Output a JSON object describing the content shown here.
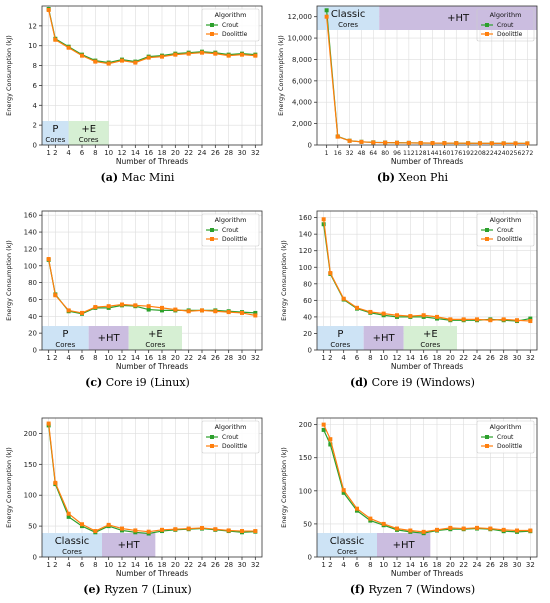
{
  "chart_data": [
    {
      "type": "line",
      "caption_label": "(a)",
      "caption_text": "Mac Mini",
      "ylabel": "Energy Consumption (kJ)",
      "xlabel": "Number of Threads",
      "xticks": [
        1,
        2,
        4,
        6,
        8,
        10,
        12,
        14,
        16,
        18,
        20,
        22,
        24,
        26,
        28,
        30,
        32
      ],
      "xlim": [
        0,
        33
      ],
      "ylim": [
        0,
        14
      ],
      "yticks": [
        0,
        2,
        4,
        6,
        8,
        10,
        12
      ],
      "ytick_labels": [
        "0",
        "2",
        "4",
        "6",
        "8",
        "10",
        "12"
      ],
      "legend_title": "Algorithm",
      "series": [
        {
          "name": "Crout",
          "color": "#2ca02c",
          "x": [
            1,
            2,
            4,
            6,
            8,
            10,
            12,
            14,
            16,
            18,
            20,
            22,
            24,
            26,
            28,
            30,
            32
          ],
          "values": [
            13.7,
            10.7,
            9.9,
            9.1,
            8.5,
            8.3,
            8.6,
            8.4,
            8.9,
            9.0,
            9.2,
            9.3,
            9.4,
            9.3,
            9.1,
            9.2,
            9.1
          ]
        },
        {
          "name": "Doolittle",
          "color": "#ff7f0e",
          "x": [
            1,
            2,
            4,
            6,
            8,
            10,
            12,
            14,
            16,
            18,
            20,
            22,
            24,
            26,
            28,
            30,
            32
          ],
          "values": [
            13.6,
            10.6,
            9.8,
            9.0,
            8.4,
            8.2,
            8.5,
            8.3,
            8.8,
            8.9,
            9.1,
            9.2,
            9.3,
            9.2,
            9.0,
            9.1,
            9.0
          ]
        }
      ],
      "bands": [
        {
          "top": "P",
          "bottom": "Cores",
          "x0": 0,
          "x1": 4,
          "color": "#cde3f5"
        },
        {
          "top": "+E",
          "bottom": "Cores",
          "x0": 4,
          "x1": 10,
          "color": "#d6efd3"
        }
      ]
    },
    {
      "type": "line",
      "caption_label": "(b)",
      "caption_text": "Xeon Phi",
      "ylabel": "Energy Consumption (kJ)",
      "xlabel": "Number of Threads",
      "xticks": [
        1,
        16,
        32,
        48,
        64,
        80,
        96,
        112,
        128,
        144,
        160,
        176,
        192,
        208,
        224,
        240,
        256,
        272
      ],
      "xtick_labels": [
        "1",
        "16",
        "32",
        "48",
        "64",
        "80",
        "96",
        "112",
        "128",
        "144",
        "160",
        "176",
        "192",
        "208",
        "224",
        "240",
        "256",
        "272"
      ],
      "xlim": [
        -12,
        285
      ],
      "ylim": [
        0,
        13000
      ],
      "yticks": [
        0,
        2000,
        4000,
        6000,
        8000,
        10000,
        12000
      ],
      "ytick_labels": [
        "0",
        "2,000",
        "4,000",
        "6,000",
        "8,000",
        "10,000",
        "12,000"
      ],
      "legend_title": "Algorithm",
      "series": [
        {
          "name": "Crout",
          "color": "#2ca02c",
          "x": [
            1,
            16,
            32,
            48,
            64,
            80,
            96,
            112,
            128,
            144,
            160,
            176,
            192,
            208,
            224,
            240,
            256,
            272
          ],
          "values": [
            12600,
            800,
            400,
            300,
            250,
            230,
            210,
            200,
            190,
            180,
            175,
            170,
            165,
            160,
            158,
            155,
            152,
            150
          ]
        },
        {
          "name": "Doolittle",
          "color": "#ff7f0e",
          "x": [
            1,
            16,
            32,
            48,
            64,
            80,
            96,
            112,
            128,
            144,
            160,
            176,
            192,
            208,
            224,
            240,
            256,
            272
          ],
          "values": [
            12000,
            780,
            390,
            290,
            240,
            220,
            205,
            195,
            185,
            178,
            172,
            168,
            162,
            158,
            155,
            152,
            150,
            148
          ]
        }
      ],
      "bands": [
        {
          "top": "Classic",
          "bottom": "Cores",
          "x0": -12,
          "x1": 72,
          "color": "#cde3f5"
        },
        {
          "top": "+HT",
          "bottom": "",
          "x0": 72,
          "x1": 285,
          "color": "#cbbde0"
        }
      ],
      "legend_over_band": true
    },
    {
      "type": "line",
      "caption_label": "(c)",
      "caption_text": "Core i9 (Linux)",
      "ylabel": "Energy Consumption (kJ)",
      "xlabel": "Number of Threads",
      "xticks": [
        1,
        2,
        4,
        6,
        8,
        10,
        12,
        14,
        16,
        18,
        20,
        22,
        24,
        26,
        28,
        30,
        32
      ],
      "xlim": [
        0,
        33
      ],
      "ylim": [
        0,
        165
      ],
      "yticks": [
        0,
        20,
        40,
        60,
        80,
        100,
        120,
        140,
        160
      ],
      "ytick_labels": [
        "0",
        "20",
        "40",
        "60",
        "80",
        "100",
        "120",
        "140",
        "160"
      ],
      "legend_title": "Algorithm",
      "series": [
        {
          "name": "Crout",
          "color": "#2ca02c",
          "x": [
            1,
            2,
            4,
            6,
            8,
            10,
            12,
            14,
            16,
            18,
            20,
            22,
            24,
            26,
            28,
            30,
            32
          ],
          "values": [
            107,
            66,
            46,
            43,
            50,
            50,
            53,
            52,
            48,
            47,
            47,
            47,
            47,
            47,
            46,
            45,
            44
          ]
        },
        {
          "name": "Doolittle",
          "color": "#ff7f0e",
          "x": [
            1,
            2,
            4,
            6,
            8,
            10,
            12,
            14,
            16,
            18,
            20,
            22,
            24,
            26,
            28,
            30,
            32
          ],
          "values": [
            108,
            65,
            47,
            44,
            51,
            52,
            54,
            53,
            52,
            50,
            48,
            46,
            47,
            46,
            45,
            44,
            41
          ]
        }
      ],
      "bands": [
        {
          "top": "P",
          "bottom": "Cores",
          "x0": 0,
          "x1": 7,
          "color": "#cde3f5"
        },
        {
          "top": "+HT",
          "bottom": "",
          "x0": 7,
          "x1": 13,
          "color": "#cbbde0"
        },
        {
          "top": "+E",
          "bottom": "Cores",
          "x0": 13,
          "x1": 21,
          "color": "#d6efd3"
        }
      ]
    },
    {
      "type": "line",
      "caption_label": "(d)",
      "caption_text": "Core i9 (Windows)",
      "ylabel": "Energy Consumption (kJ)",
      "xlabel": "Number of Threads",
      "xticks": [
        1,
        2,
        4,
        6,
        8,
        10,
        12,
        14,
        16,
        18,
        20,
        22,
        24,
        26,
        28,
        30,
        32
      ],
      "xlim": [
        0,
        33
      ],
      "ylim": [
        0,
        168
      ],
      "yticks": [
        0,
        20,
        40,
        60,
        80,
        100,
        120,
        140,
        160
      ],
      "ytick_labels": [
        "0",
        "20",
        "40",
        "60",
        "80",
        "100",
        "120",
        "140",
        "160"
      ],
      "legend_title": "Algorithm",
      "series": [
        {
          "name": "Crout",
          "color": "#2ca02c",
          "x": [
            1,
            2,
            4,
            6,
            8,
            10,
            12,
            14,
            16,
            18,
            20,
            22,
            24,
            26,
            28,
            30,
            32
          ],
          "values": [
            152,
            92,
            61,
            50,
            45,
            42,
            40,
            40,
            40,
            38,
            36,
            36,
            36,
            37,
            36,
            35,
            38
          ]
        },
        {
          "name": "Doolittle",
          "color": "#ff7f0e",
          "x": [
            1,
            2,
            4,
            6,
            8,
            10,
            12,
            14,
            16,
            18,
            20,
            22,
            24,
            26,
            28,
            30,
            32
          ],
          "values": [
            158,
            93,
            62,
            51,
            46,
            44,
            42,
            41,
            42,
            40,
            37,
            37,
            37,
            36,
            37,
            36,
            35
          ]
        }
      ],
      "bands": [
        {
          "top": "P",
          "bottom": "Cores",
          "x0": 0,
          "x1": 7,
          "color": "#cde3f5"
        },
        {
          "top": "+HT",
          "bottom": "",
          "x0": 7,
          "x1": 13,
          "color": "#cbbde0"
        },
        {
          "top": "+E",
          "bottom": "Cores",
          "x0": 13,
          "x1": 21,
          "color": "#d6efd3"
        }
      ]
    },
    {
      "type": "line",
      "caption_label": "(e)",
      "caption_text": "Ryzen 7 (Linux)",
      "ylabel": "Energy Consumption (kJ)",
      "xlabel": "Number of Threads",
      "xticks": [
        1,
        2,
        4,
        6,
        8,
        10,
        12,
        14,
        16,
        18,
        20,
        22,
        24,
        26,
        28,
        30,
        32
      ],
      "xlim": [
        0,
        33
      ],
      "ylim": [
        0,
        225
      ],
      "yticks": [
        0,
        50,
        100,
        150,
        200
      ],
      "ytick_labels": [
        "0",
        "50",
        "100",
        "150",
        "200"
      ],
      "legend_title": "Algorithm",
      "series": [
        {
          "name": "Crout",
          "color": "#2ca02c",
          "x": [
            1,
            2,
            4,
            6,
            8,
            10,
            12,
            14,
            16,
            18,
            20,
            22,
            24,
            26,
            28,
            30,
            32
          ],
          "values": [
            213,
            118,
            65,
            50,
            40,
            50,
            43,
            40,
            38,
            42,
            44,
            45,
            46,
            44,
            42,
            40,
            41
          ]
        },
        {
          "name": "Doolittle",
          "color": "#ff7f0e",
          "x": [
            1,
            2,
            4,
            6,
            8,
            10,
            12,
            14,
            16,
            18,
            20,
            22,
            24,
            26,
            28,
            30,
            32
          ],
          "values": [
            216,
            120,
            70,
            53,
            42,
            52,
            46,
            43,
            41,
            44,
            45,
            46,
            47,
            45,
            43,
            42,
            42
          ]
        }
      ],
      "bands": [
        {
          "top": "Classic",
          "bottom": "Cores",
          "x0": 0,
          "x1": 9,
          "color": "#cde3f5"
        },
        {
          "top": "+HT",
          "bottom": "",
          "x0": 9,
          "x1": 17,
          "color": "#cbbde0"
        }
      ]
    },
    {
      "type": "line",
      "caption_label": "(f)",
      "caption_text": "Ryzen 7 (Windows)",
      "ylabel": "Energy Consumption (kJ)",
      "xlabel": "Number of Threads",
      "xticks": [
        1,
        2,
        4,
        6,
        8,
        10,
        12,
        14,
        16,
        18,
        20,
        22,
        24,
        26,
        28,
        30,
        32
      ],
      "xlim": [
        0,
        33
      ],
      "ylim": [
        0,
        210
      ],
      "yticks": [
        0,
        50,
        100,
        150,
        200
      ],
      "ytick_labels": [
        "0",
        "50",
        "100",
        "150",
        "200"
      ],
      "legend_title": "Algorithm",
      "series": [
        {
          "name": "Crout",
          "color": "#2ca02c",
          "x": [
            1,
            2,
            4,
            6,
            8,
            10,
            12,
            14,
            16,
            18,
            20,
            22,
            24,
            26,
            28,
            30,
            32
          ],
          "values": [
            192,
            170,
            97,
            70,
            55,
            48,
            41,
            38,
            36,
            40,
            42,
            42,
            43,
            42,
            39,
            38,
            39
          ]
        },
        {
          "name": "Doolittle",
          "color": "#ff7f0e",
          "x": [
            1,
            2,
            4,
            6,
            8,
            10,
            12,
            14,
            16,
            18,
            20,
            22,
            24,
            26,
            28,
            30,
            32
          ],
          "values": [
            200,
            178,
            101,
            73,
            58,
            50,
            43,
            40,
            38,
            41,
            44,
            43,
            44,
            43,
            41,
            40,
            40
          ]
        }
      ],
      "bands": [
        {
          "top": "Classic",
          "bottom": "Cores",
          "x0": 0,
          "x1": 9,
          "color": "#cde3f5"
        },
        {
          "top": "+HT",
          "bottom": "",
          "x0": 9,
          "x1": 17,
          "color": "#cbbde0"
        }
      ]
    }
  ]
}
